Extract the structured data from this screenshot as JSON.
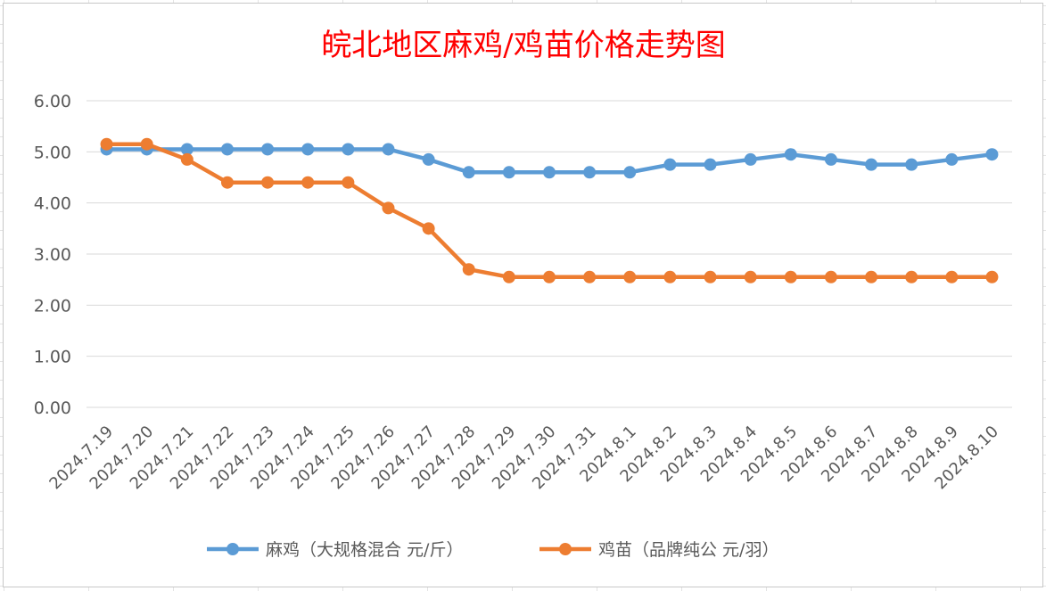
{
  "chart_data": {
    "type": "line",
    "title": "皖北地区麻鸡/鸡苗价格走势图",
    "categories": [
      "2024.7.19",
      "2024.7.20",
      "2024.7.21",
      "2024.7.22",
      "2024.7.23",
      "2024.7.24",
      "2024.7.25",
      "2024.7.26",
      "2024.7.27",
      "2024.7.28",
      "2024.7.29",
      "2024.7.30",
      "2024.7.31",
      "2024.8.1",
      "2024.8.2",
      "2024.8.3",
      "2024.8.4",
      "2024.8.5",
      "2024.8.6",
      "2024.8.7",
      "2024.8.8",
      "2024.8.9",
      "2024.8.10"
    ],
    "yticks": [
      "0.00",
      "1.00",
      "2.00",
      "3.00",
      "4.00",
      "5.00",
      "6.00"
    ],
    "ylim": [
      0,
      6
    ],
    "grid": true,
    "legend_position": "bottom",
    "series": [
      {
        "name": "麻鸡（大规格混合 元/斤）",
        "color": "#5b9bd5",
        "values": [
          5.05,
          5.05,
          5.05,
          5.05,
          5.05,
          5.05,
          5.05,
          5.05,
          4.85,
          4.6,
          4.6,
          4.6,
          4.6,
          4.6,
          4.75,
          4.75,
          4.85,
          4.95,
          4.85,
          4.75,
          4.75,
          4.85,
          4.95
        ]
      },
      {
        "name": "鸡苗（品牌纯公 元/羽）",
        "color": "#ed7d31",
        "values": [
          5.15,
          5.15,
          4.85,
          4.4,
          4.4,
          4.4,
          4.4,
          3.9,
          3.5,
          2.7,
          2.55,
          2.55,
          2.55,
          2.55,
          2.55,
          2.55,
          2.55,
          2.55,
          2.55,
          2.55,
          2.55,
          2.55,
          2.55
        ]
      }
    ]
  }
}
